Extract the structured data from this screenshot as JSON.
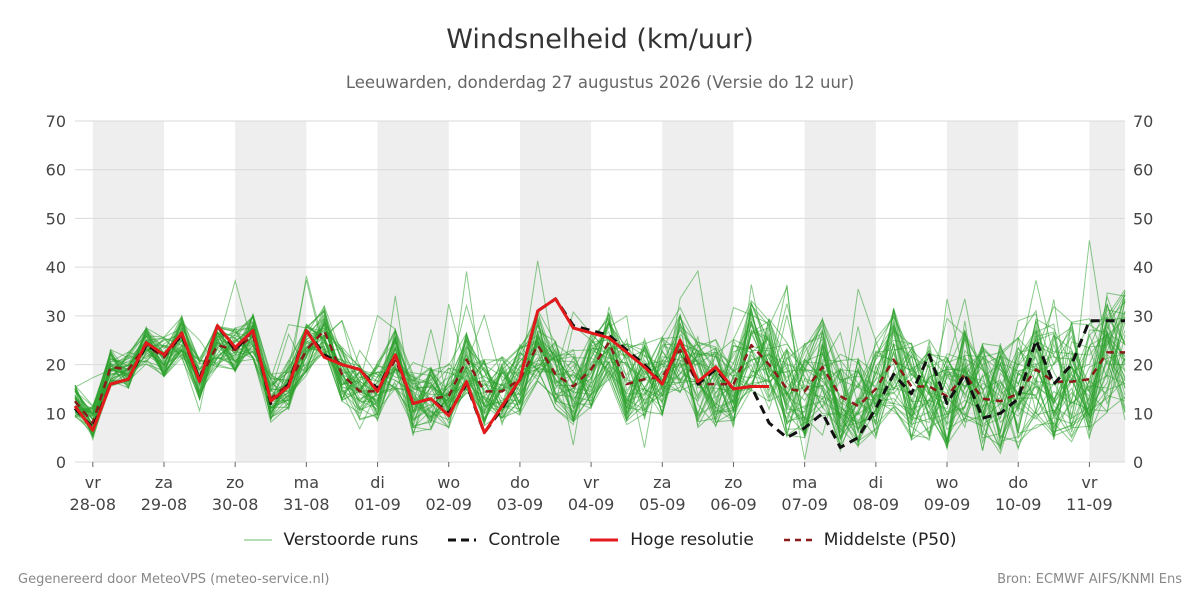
{
  "header": {
    "title": "Windsnelheid (km/uur)",
    "subtitle": "Leeuwarden, donderdag 27 augustus 2026 (Versie do 12 uur)"
  },
  "footer": {
    "left": "Gegenereerd door MeteoVPS (meteo-service.nl)",
    "right": "Bron: ECMWF AIFS/KNMI Ens"
  },
  "legend": {
    "ensemble_label": "Verstoorde runs",
    "control_label": "Controle",
    "hires_label": "Hoge resolutie",
    "median_label": "Middelste (P50)"
  },
  "colors": {
    "ensemble": "#2ca02c",
    "control": "#111111",
    "hires": "#e31a1c",
    "median": "#8b1a1a",
    "band": "#eeeeee",
    "grid": "#d9d9d9"
  },
  "chart_data": {
    "type": "line",
    "title": "Windsnelheid (km/uur)",
    "ylim": [
      0,
      70
    ],
    "yticks": [
      0,
      10,
      20,
      30,
      40,
      50,
      60,
      70
    ],
    "xlim": [
      -0.25,
      14.5
    ],
    "grid": true,
    "legend_position": "bottom",
    "x_day_ticks": [
      {
        "day": "vr",
        "date": "28-08"
      },
      {
        "day": "za",
        "date": "29-08"
      },
      {
        "day": "zo",
        "date": "30-08"
      },
      {
        "day": "ma",
        "date": "31-08"
      },
      {
        "day": "di",
        "date": "01-09"
      },
      {
        "day": "wo",
        "date": "02-09"
      },
      {
        "day": "do",
        "date": "03-09"
      },
      {
        "day": "vr",
        "date": "04-09"
      },
      {
        "day": "za",
        "date": "05-09"
      },
      {
        "day": "zo",
        "date": "06-09"
      },
      {
        "day": "ma",
        "date": "07-09"
      },
      {
        "day": "di",
        "date": "08-09"
      },
      {
        "day": "wo",
        "date": "09-09"
      },
      {
        "day": "do",
        "date": "10-09"
      },
      {
        "day": "vr",
        "date": "11-09"
      }
    ],
    "series": [
      {
        "name": "Controle",
        "x": [
          -0.25,
          0,
          0.25,
          0.5,
          0.75,
          1,
          1.25,
          1.5,
          1.75,
          2,
          2.25,
          2.5,
          2.75,
          3,
          3.25,
          3.5,
          3.75,
          4,
          4.25,
          4.5,
          4.75,
          5,
          5.25,
          5.5,
          5.75,
          6,
          6.25,
          6.5,
          6.75,
          7,
          7.25,
          7.5,
          7.75,
          8,
          8.25,
          8.5,
          8.75,
          9,
          9.25,
          9.5,
          9.75,
          10,
          10.25,
          10.5,
          10.75,
          11,
          11.25,
          11.5,
          11.75,
          12,
          12.25,
          12.5,
          12.75,
          13,
          13.25,
          13.5,
          13.75,
          14,
          14.25,
          14.5
        ],
        "values": [
          11,
          7,
          16,
          17,
          24,
          22,
          26,
          17,
          28,
          23,
          27,
          12,
          16,
          27,
          22,
          20,
          19,
          15,
          22,
          12,
          13,
          10,
          16,
          6,
          11,
          17,
          31,
          33.5,
          28,
          27,
          26,
          23,
          20,
          16,
          25,
          16,
          19,
          15,
          15.5,
          8,
          5,
          7,
          10,
          3,
          5,
          11,
          18,
          14,
          22,
          12,
          18,
          9,
          10,
          13,
          25,
          16,
          20,
          29,
          29,
          29
        ]
      },
      {
        "name": "Hoge resolutie",
        "x": [
          -0.25,
          0,
          0.25,
          0.5,
          0.75,
          1,
          1.25,
          1.5,
          1.75,
          2,
          2.25,
          2.5,
          2.75,
          3,
          3.25,
          3.5,
          3.75,
          4,
          4.25,
          4.5,
          4.75,
          5,
          5.25,
          5.5,
          5.75,
          6,
          6.25,
          6.5,
          6.75,
          7,
          7.25,
          7.5,
          7.75,
          8,
          8.25,
          8.5,
          8.75,
          9,
          9.25,
          9.5
        ],
        "values": [
          11.5,
          6.5,
          16,
          17,
          24.5,
          22,
          26.5,
          16.5,
          28,
          23.5,
          27,
          12.5,
          15.5,
          27,
          21.5,
          20,
          19,
          14.5,
          22,
          12,
          13,
          9.5,
          16.5,
          6,
          11.5,
          17,
          31,
          33.5,
          27.5,
          26.5,
          25.5,
          22.5,
          19.5,
          16,
          25,
          16.5,
          19.5,
          15,
          15.5,
          15.5
        ]
      },
      {
        "name": "Middelste (P50)",
        "x": [
          -0.25,
          0,
          0.25,
          0.5,
          0.75,
          1,
          1.25,
          1.5,
          1.75,
          2,
          2.25,
          2.5,
          2.75,
          3,
          3.25,
          3.5,
          3.75,
          4,
          4.25,
          4.5,
          4.75,
          5,
          5.25,
          5.5,
          5.75,
          6,
          6.25,
          6.5,
          6.75,
          7,
          7.25,
          7.5,
          7.75,
          8,
          8.25,
          8.5,
          8.75,
          9,
          9.25,
          9.5,
          9.75,
          10,
          10.25,
          10.5,
          10.75,
          11,
          11.25,
          11.5,
          11.75,
          12,
          12.25,
          12.5,
          12.75,
          13,
          13.25,
          13.5,
          13.75,
          14,
          14.25,
          14.5
        ],
        "values": [
          12.5,
          8,
          19.5,
          19,
          24,
          21.5,
          26,
          17,
          24,
          23,
          26,
          13,
          16,
          23,
          27,
          18,
          14.5,
          14.5,
          21,
          12,
          13,
          13.5,
          21,
          14.5,
          14.5,
          17,
          24,
          18,
          15.5,
          19,
          24.5,
          16,
          17,
          17.5,
          23,
          16,
          16,
          16,
          24,
          20,
          15,
          14.5,
          19.5,
          13.5,
          11.5,
          15,
          21,
          15.5,
          15.5,
          13.5,
          18,
          13,
          12.5,
          14,
          19,
          16.5,
          16.5,
          17,
          22.5,
          22.5
        ]
      }
    ]
  }
}
